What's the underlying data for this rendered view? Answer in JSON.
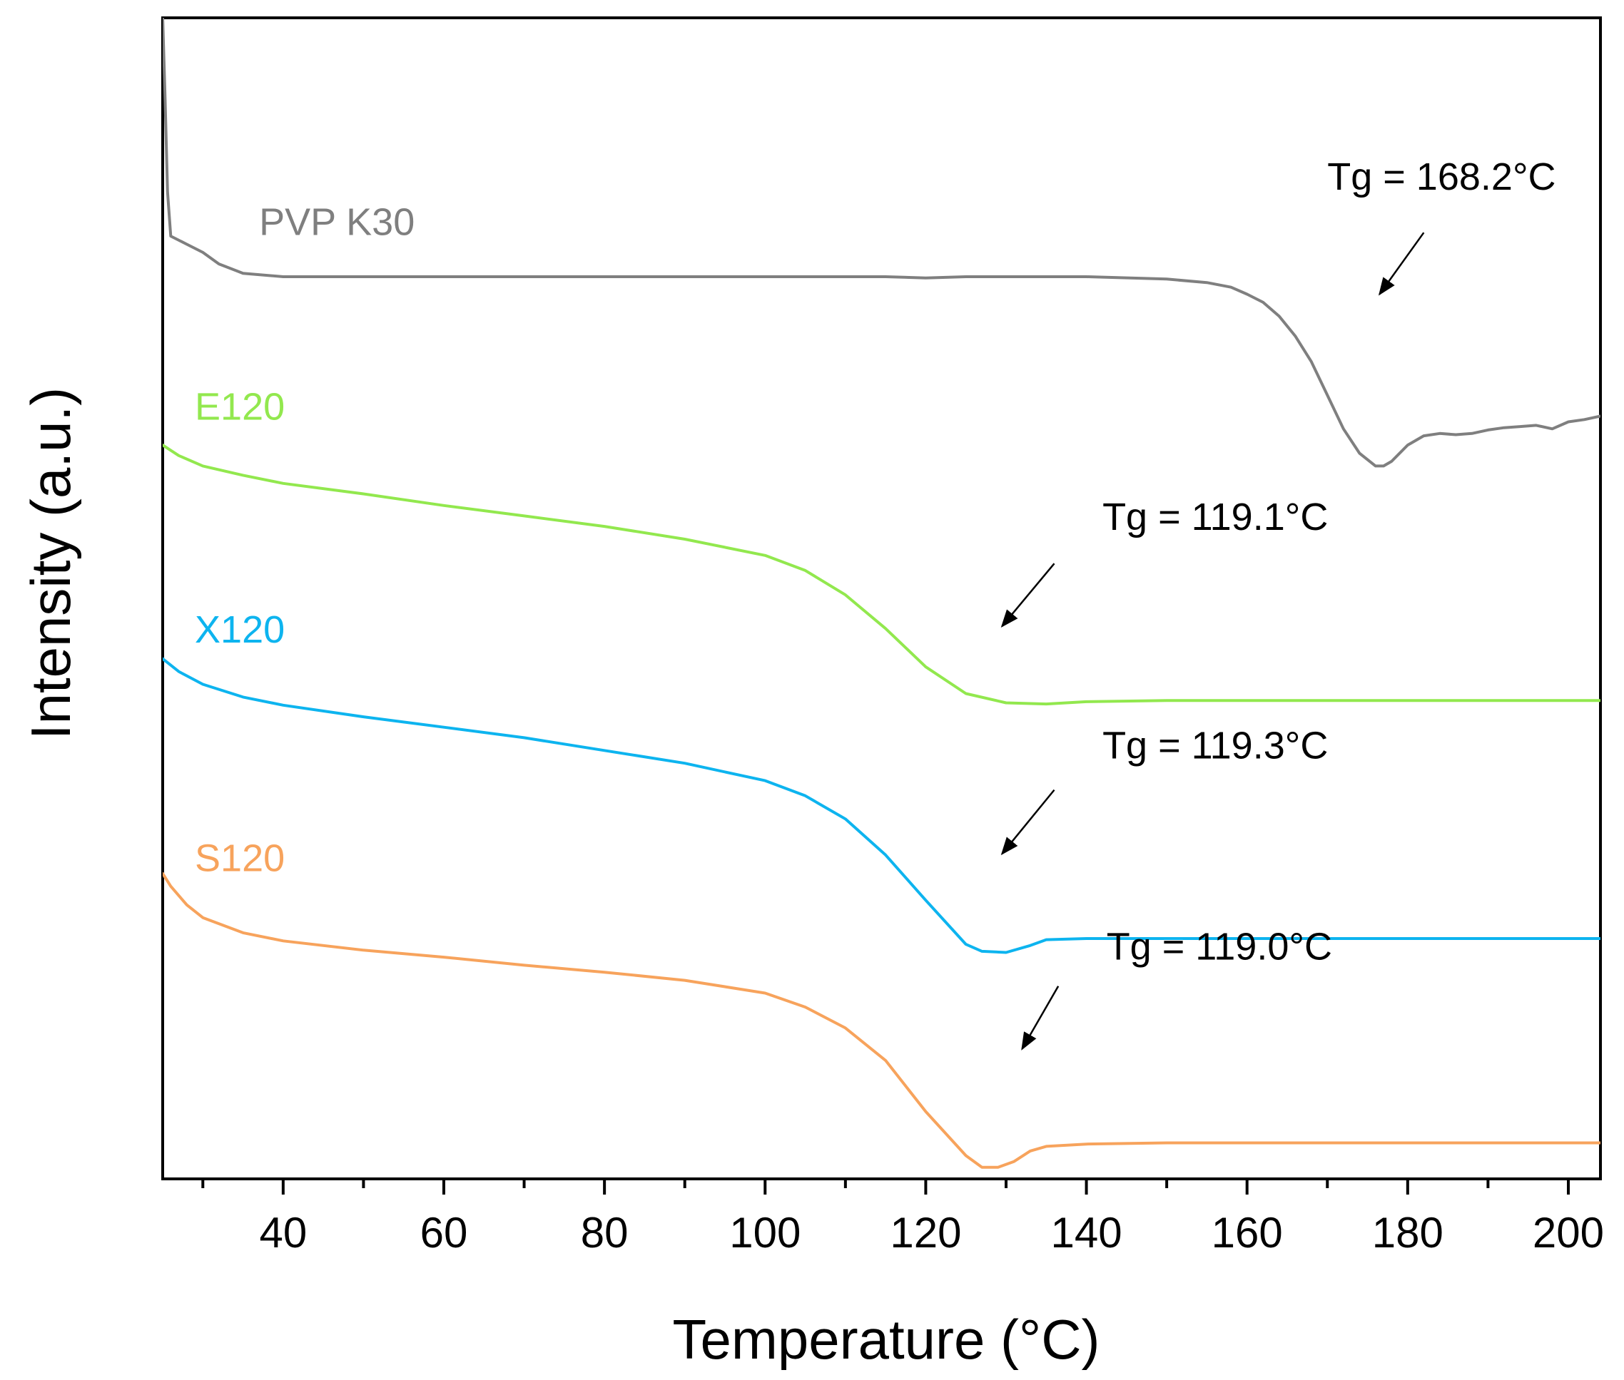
{
  "chart_data": {
    "type": "line",
    "title": "",
    "xlabel": "Temperature (°C)",
    "ylabel": "Intensity (a.u.)",
    "xlim": [
      25,
      204
    ],
    "ylim": [
      0,
      1000
    ],
    "x_ticks": [
      "40",
      "60",
      "80",
      "100",
      "120",
      "140",
      "160",
      "180",
      "200"
    ],
    "x_tick_values": [
      40,
      60,
      80,
      100,
      120,
      140,
      160,
      180,
      200
    ],
    "x_minor_step": 10,
    "y_tick_labels_shown": false,
    "grid": false,
    "legend": "none",
    "series": [
      {
        "name": "PVP K30",
        "color": "#7f7f7f",
        "x": [
          25,
          25.3,
          25.6,
          26,
          28,
          30,
          32,
          35,
          40,
          50,
          60,
          70,
          80,
          90,
          100,
          110,
          115,
          120,
          125,
          130,
          140,
          150,
          155,
          158,
          160,
          162,
          164,
          166,
          168,
          170,
          172,
          174,
          176,
          177,
          178,
          180,
          182,
          184,
          186,
          188,
          190,
          192,
          194,
          196,
          198,
          200,
          202,
          204
        ],
        "y": [
          1000,
          930,
          850,
          812,
          805,
          798,
          788,
          780,
          777,
          777,
          777,
          777,
          777,
          777,
          777,
          777,
          777,
          776,
          777,
          777,
          777,
          775,
          772,
          768,
          762,
          755,
          743,
          726,
          704,
          675,
          646,
          625,
          614,
          614,
          618,
          632,
          640,
          642,
          641,
          642,
          645,
          647,
          648,
          649,
          646,
          652,
          654,
          657
        ]
      },
      {
        "name": "E120",
        "color": "#92e84e",
        "x": [
          25,
          27,
          30,
          35,
          40,
          50,
          60,
          70,
          80,
          90,
          100,
          105,
          110,
          115,
          120,
          125,
          130,
          135,
          140,
          150,
          160,
          170,
          180,
          190,
          200,
          204
        ],
        "y": [
          632,
          623,
          614,
          606,
          599,
          590,
          580,
          571,
          562,
          551,
          537,
          524,
          503,
          474,
          441,
          418,
          410,
          409,
          411,
          412,
          412,
          412,
          412,
          412,
          412,
          412
        ]
      },
      {
        "name": "X120",
        "color": "#0db4ef",
        "x": [
          25,
          27,
          30,
          35,
          40,
          50,
          60,
          70,
          80,
          90,
          100,
          105,
          110,
          115,
          120,
          125,
          127,
          130,
          133,
          135,
          140,
          150,
          160,
          170,
          180,
          190,
          200,
          204
        ],
        "y": [
          448,
          437,
          426,
          415,
          408,
          398,
          389,
          380,
          369,
          358,
          343,
          330,
          310,
          279,
          240,
          202,
          196,
          195,
          201,
          206,
          207,
          207,
          207,
          207,
          207,
          207,
          207,
          207
        ]
      },
      {
        "name": "S120",
        "color": "#f7a35c",
        "x": [
          25,
          26,
          28,
          30,
          35,
          40,
          50,
          60,
          70,
          80,
          90,
          100,
          105,
          110,
          115,
          120,
          125,
          127,
          129,
          131,
          133,
          135,
          140,
          150,
          160,
          170,
          180,
          190,
          200,
          204
        ],
        "y": [
          263,
          252,
          236,
          225,
          212,
          205,
          197,
          191,
          184,
          178,
          171,
          160,
          148,
          130,
          102,
          58,
          20,
          10,
          10,
          15,
          24,
          28,
          30,
          31,
          31,
          31,
          31,
          31,
          31,
          31
        ]
      }
    ],
    "series_labels": [
      {
        "text": "PVP K30",
        "color": "#7f7f7f",
        "x": 37,
        "y": 813
      },
      {
        "text": "E120",
        "color": "#92e84e",
        "x": 29,
        "y": 654
      },
      {
        "text": "X120",
        "color": "#0db4ef",
        "x": 29,
        "y": 462
      },
      {
        "text": "S120",
        "color": "#f7a35c",
        "x": 29,
        "y": 265
      }
    ],
    "annotations": [
      {
        "text": "Tg = 168.2°C",
        "x": 170,
        "y": 852,
        "arrow_from": [
          182,
          815
        ],
        "arrow_to": [
          176.5,
          762
        ]
      },
      {
        "text": "Tg = 119.1°C",
        "x": 142,
        "y": 559,
        "arrow_from": [
          136,
          530
        ],
        "arrow_to": [
          129.5,
          476
        ]
      },
      {
        "text": "Tg = 119.3°C",
        "x": 142,
        "y": 362,
        "arrow_from": [
          136,
          335
        ],
        "arrow_to": [
          129.5,
          280
        ]
      },
      {
        "text": "Tg = 119.0°C",
        "x": 142.5,
        "y": 189,
        "arrow_from": [
          136.5,
          166
        ],
        "arrow_to": [
          132,
          112
        ]
      }
    ]
  }
}
